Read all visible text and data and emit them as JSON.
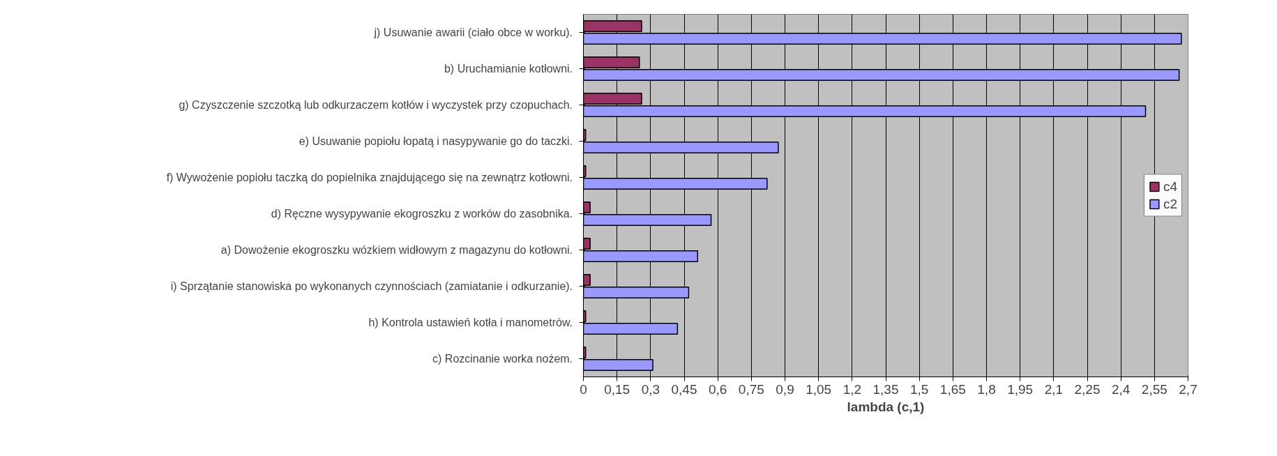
{
  "chart_data": {
    "type": "bar",
    "orientation": "horizontal",
    "xlabel": "lambda (c,1)",
    "categories": [
      "j)  Usuwanie awarii (ciało obce w worku).",
      "b)  Uruchamianie kotłowni.",
      "g)  Czyszczenie szczotką lub odkurzaczem kotłów i wyczystek przy czopuchach.",
      "e)  Usuwanie popiołu łopatą i nasypywanie go do taczki.",
      "f)  Wywożenie popiołu taczką do popielnika znajdującego się na zewnątrz kotłowni.",
      "d)  Ręczne wysypywanie ekogroszku z worków do zasobnika.",
      "a)  Dowożenie ekogroszku wózkiem widłowym z magazynu do kotłowni.",
      "i)  Sprzątanie stanowiska po wykonanych czynnościach (zamiatanie i odkurzanie).",
      "h)  Kontrola ustawień kotła i manometrów.",
      "c)  Rozcinanie worka nożem."
    ],
    "series": [
      {
        "name": "c4",
        "color": "#993366",
        "values": [
          0.26,
          0.25,
          0.26,
          0.01,
          0.01,
          0.03,
          0.03,
          0.03,
          0.01,
          0.01
        ]
      },
      {
        "name": "c2",
        "color": "#9999ff",
        "values": [
          2.67,
          2.66,
          2.51,
          0.87,
          0.82,
          0.57,
          0.51,
          0.47,
          0.42,
          0.31
        ]
      }
    ],
    "xlim": [
      0,
      2.7
    ],
    "xticks": [
      0,
      {
        "value": 0.15,
        "label": "0,15"
      },
      {
        "value": 0.3,
        "label": "0,3"
      },
      {
        "value": 0.45,
        "label": "0,45"
      },
      {
        "value": 0.6,
        "label": "0,6"
      },
      {
        "value": 0.75,
        "label": "0,75"
      },
      {
        "value": 0.9,
        "label": "0,9"
      },
      {
        "value": 1.05,
        "label": "1,05"
      },
      {
        "value": 1.2,
        "label": "1,2"
      },
      {
        "value": 1.35,
        "label": "1,35"
      },
      {
        "value": 1.5,
        "label": "1,5"
      },
      {
        "value": 1.65,
        "label": "1,65"
      },
      {
        "value": 1.8,
        "label": "1,8"
      },
      {
        "value": 1.95,
        "label": "1,95"
      },
      {
        "value": 2.1,
        "label": "2,1"
      },
      {
        "value": 2.25,
        "label": "2,25"
      },
      {
        "value": 2.4,
        "label": "2,4"
      },
      {
        "value": 2.55,
        "label": "2,55"
      },
      {
        "value": 2.7,
        "label": "2,7"
      }
    ],
    "grid": "x",
    "legend": "right"
  }
}
